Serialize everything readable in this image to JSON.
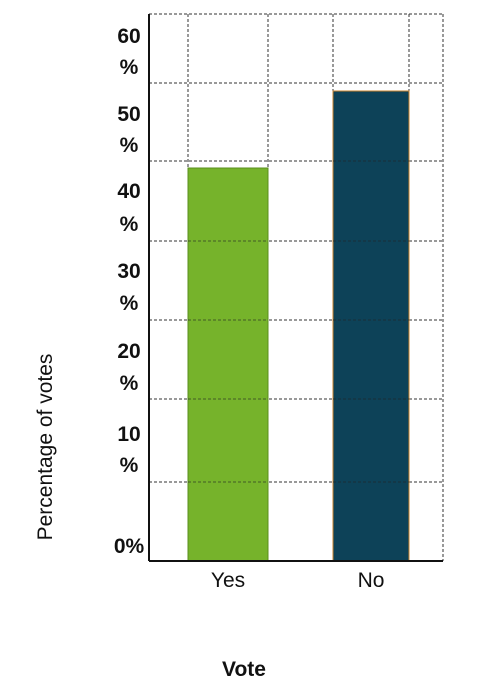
{
  "chart_data": {
    "type": "bar",
    "categories": [
      "Yes",
      "No"
    ],
    "values": [
      40,
      50
    ],
    "bar_colors": [
      "#76b32b",
      "#0d4258"
    ],
    "bar_edge_colors": [
      "#5a8f1d",
      "#c8832e"
    ],
    "ylim": [
      0,
      60
    ],
    "yticks": [
      0,
      10,
      20,
      30,
      40,
      50,
      60
    ],
    "ytick_labels": [
      [
        "0%"
      ],
      [
        "10",
        "%"
      ],
      [
        "20",
        "%"
      ],
      [
        "30",
        "%"
      ],
      [
        "40",
        "%"
      ],
      [
        "50",
        "%"
      ],
      [
        "60",
        "%"
      ]
    ],
    "xlabel": "Vote",
    "ylabel": "Percentage of votes",
    "grid": true,
    "grid_style": "dashed"
  }
}
